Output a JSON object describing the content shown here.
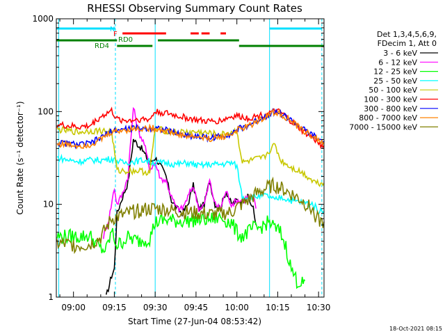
{
  "chart_data": {
    "type": "line",
    "title": "RHESSI Observing Summary Count Rates",
    "xlabel": "Start Time (27-Jun-04 08:53:42)",
    "ylabel": "Count Rate (s⁻¹ detector⁻¹)",
    "y_scale": "log",
    "ylim": [
      1,
      1000
    ],
    "xlim_minutes": [
      53.7,
      152
    ],
    "x_ticks": [
      {
        "label": "09:00",
        "m": 60
      },
      {
        "label": "09:15",
        "m": 75
      },
      {
        "label": "09:30",
        "m": 90
      },
      {
        "label": "09:45",
        "m": 105
      },
      {
        "label": "10:00",
        "m": 120
      },
      {
        "label": "10:15",
        "m": 135
      },
      {
        "label": "10:30",
        "m": 150
      }
    ],
    "y_ticks": [
      {
        "label": "1",
        "v": 1
      },
      {
        "label": "10",
        "v": 10
      },
      {
        "label": "100",
        "v": 100
      },
      {
        "label": "1000",
        "v": 1000
      }
    ],
    "legend_header": [
      "Det 1,3,4,5,6,9,",
      "FDecim 1, Att 0"
    ],
    "legend_position": "right",
    "footer_date": "18-Oct-2021 08:15",
    "markers": {
      "N": {
        "label": "N",
        "color": "#00e0ff"
      },
      "F": {
        "label": "F",
        "color": "#ff0000"
      },
      "RD0": {
        "label": "RD0",
        "color": "#008000"
      },
      "RD4": {
        "label": "RD4",
        "color": "#008000"
      }
    },
    "series": [
      {
        "name": "3 - 6 keV",
        "color": "#000000",
        "points": [
          [
            72,
            1
          ],
          [
            74,
            1.7
          ],
          [
            75,
            2
          ],
          [
            76,
            8
          ],
          [
            78,
            12
          ],
          [
            80,
            17
          ],
          [
            82,
            50
          ],
          [
            85,
            40
          ],
          [
            88,
            28
          ],
          [
            90,
            32
          ],
          [
            92,
            26
          ],
          [
            94,
            20
          ],
          [
            96,
            11
          ],
          [
            98,
            9
          ],
          [
            100,
            8
          ],
          [
            102,
            10
          ],
          [
            104,
            16
          ],
          [
            106,
            9
          ],
          [
            108,
            10
          ],
          [
            110,
            18
          ],
          [
            112,
            10
          ],
          [
            114,
            9
          ],
          [
            116,
            14
          ],
          [
            118,
            10
          ],
          [
            120,
            11
          ],
          [
            122,
            11
          ],
          [
            124,
            12
          ],
          [
            126,
            9
          ],
          [
            127,
            6
          ]
        ]
      },
      {
        "name": "6 - 12 keV",
        "color": "#ff00ff",
        "points": [
          [
            71,
            4.5
          ],
          [
            73,
            7
          ],
          [
            75,
            15
          ],
          [
            76,
            10
          ],
          [
            78,
            13
          ],
          [
            80,
            20
          ],
          [
            82,
            110
          ],
          [
            84,
            60
          ],
          [
            86,
            45
          ],
          [
            88,
            24
          ],
          [
            90,
            28
          ],
          [
            92,
            19
          ],
          [
            94,
            18
          ],
          [
            96,
            12
          ],
          [
            98,
            9
          ],
          [
            100,
            9
          ],
          [
            102,
            12
          ],
          [
            104,
            16
          ],
          [
            106,
            9
          ],
          [
            108,
            10
          ],
          [
            110,
            18
          ],
          [
            112,
            10
          ],
          [
            114,
            9
          ],
          [
            116,
            14
          ],
          [
            118,
            10
          ],
          [
            120,
            11
          ],
          [
            122,
            11
          ],
          [
            124,
            12
          ],
          [
            126,
            12
          ],
          [
            127,
            9
          ]
        ]
      },
      {
        "name": "12 - 25 keV",
        "color": "#00ff00",
        "points": [
          [
            54,
            4.5
          ],
          [
            58,
            4.5
          ],
          [
            62,
            4.5
          ],
          [
            66,
            4.6
          ],
          [
            70,
            3.3
          ],
          [
            72,
            3.2
          ],
          [
            74,
            5.1
          ],
          [
            76,
            3.6
          ],
          [
            80,
            4.4
          ],
          [
            84,
            4
          ],
          [
            88,
            4.3
          ],
          [
            90,
            6.4
          ],
          [
            94,
            6.8
          ],
          [
            98,
            6.6
          ],
          [
            102,
            6.7
          ],
          [
            106,
            6.8
          ],
          [
            110,
            6.9
          ],
          [
            114,
            7.2
          ],
          [
            118,
            6.3
          ],
          [
            120,
            5
          ],
          [
            122,
            4.5
          ],
          [
            124,
            5
          ],
          [
            126,
            5.5
          ],
          [
            128,
            5.5
          ],
          [
            130,
            6
          ],
          [
            132,
            6.5
          ],
          [
            134,
            5.5
          ],
          [
            136,
            5
          ],
          [
            138,
            3.5
          ],
          [
            140,
            2
          ],
          [
            142,
            1.5
          ],
          [
            144,
            1.4
          ],
          [
            145,
            1.5
          ]
        ]
      },
      {
        "name": "25 - 50 keV",
        "color": "#00ffff",
        "points": [
          [
            54,
            32
          ],
          [
            58,
            30
          ],
          [
            62,
            29
          ],
          [
            66,
            30
          ],
          [
            70,
            30
          ],
          [
            74,
            31
          ],
          [
            78,
            28
          ],
          [
            82,
            29
          ],
          [
            86,
            30
          ],
          [
            90,
            28
          ],
          [
            94,
            28
          ],
          [
            98,
            27
          ],
          [
            102,
            28
          ],
          [
            106,
            26
          ],
          [
            110,
            27
          ],
          [
            114,
            27
          ],
          [
            118,
            28
          ],
          [
            120,
            26
          ],
          [
            122,
            12
          ],
          [
            126,
            12
          ],
          [
            130,
            12.5
          ],
          [
            132,
            12
          ],
          [
            134,
            11
          ],
          [
            136,
            12
          ],
          [
            140,
            11
          ],
          [
            144,
            10.5
          ],
          [
            148,
            10
          ],
          [
            150,
            8.5
          ],
          [
            152,
            8.5
          ]
        ]
      },
      {
        "name": "50 - 100 keV",
        "color": "#c8c800",
        "points": [
          [
            54,
            64
          ],
          [
            58,
            62
          ],
          [
            62,
            60
          ],
          [
            66,
            62
          ],
          [
            70,
            62
          ],
          [
            74,
            61
          ],
          [
            76,
            23
          ],
          [
            80,
            23
          ],
          [
            84,
            23
          ],
          [
            88,
            22
          ],
          [
            90,
            65
          ],
          [
            94,
            62
          ],
          [
            98,
            60
          ],
          [
            102,
            60
          ],
          [
            106,
            60
          ],
          [
            110,
            58
          ],
          [
            114,
            56
          ],
          [
            118,
            60
          ],
          [
            120,
            62
          ],
          [
            122,
            28
          ],
          [
            126,
            30
          ],
          [
            130,
            32
          ],
          [
            132,
            38
          ],
          [
            134,
            44
          ],
          [
            136,
            30
          ],
          [
            140,
            25
          ],
          [
            144,
            22
          ],
          [
            148,
            18
          ],
          [
            150,
            17
          ],
          [
            152,
            17
          ]
        ]
      },
      {
        "name": "100 - 300 keV",
        "color": "#ff0000",
        "points": [
          [
            54,
            72
          ],
          [
            58,
            70
          ],
          [
            62,
            68
          ],
          [
            66,
            70
          ],
          [
            70,
            88
          ],
          [
            74,
            102
          ],
          [
            76,
            82
          ],
          [
            80,
            80
          ],
          [
            84,
            83
          ],
          [
            88,
            82
          ],
          [
            90,
            100
          ],
          [
            94,
            96
          ],
          [
            98,
            90
          ],
          [
            102,
            85
          ],
          [
            106,
            80
          ],
          [
            110,
            78
          ],
          [
            114,
            80
          ],
          [
            118,
            88
          ],
          [
            120,
            90
          ],
          [
            124,
            85
          ],
          [
            128,
            90
          ],
          [
            132,
            97
          ],
          [
            134,
            100
          ],
          [
            136,
            98
          ],
          [
            140,
            78
          ],
          [
            144,
            62
          ],
          [
            148,
            52
          ],
          [
            150,
            45
          ],
          [
            152,
            43
          ]
        ]
      },
      {
        "name": "300 - 800 keV",
        "color": "#0000ff",
        "points": [
          [
            54,
            46
          ],
          [
            58,
            45
          ],
          [
            62,
            44
          ],
          [
            66,
            45
          ],
          [
            70,
            52
          ],
          [
            74,
            62
          ],
          [
            78,
            64
          ],
          [
            82,
            66
          ],
          [
            86,
            66
          ],
          [
            90,
            67
          ],
          [
            94,
            63
          ],
          [
            98,
            58
          ],
          [
            102,
            55
          ],
          [
            106,
            54
          ],
          [
            110,
            52
          ],
          [
            114,
            54
          ],
          [
            118,
            58
          ],
          [
            120,
            64
          ],
          [
            124,
            70
          ],
          [
            128,
            82
          ],
          [
            132,
            95
          ],
          [
            134,
            100
          ],
          [
            136,
            96
          ],
          [
            140,
            80
          ],
          [
            144,
            65
          ],
          [
            148,
            55
          ],
          [
            150,
            50
          ],
          [
            152,
            48
          ]
        ]
      },
      {
        "name": "800 - 7000 keV",
        "color": "#ff8000",
        "points": [
          [
            54,
            45
          ],
          [
            58,
            44
          ],
          [
            62,
            43
          ],
          [
            66,
            44
          ],
          [
            70,
            50
          ],
          [
            74,
            60
          ],
          [
            78,
            63
          ],
          [
            82,
            65
          ],
          [
            86,
            66
          ],
          [
            90,
            66
          ],
          [
            94,
            62
          ],
          [
            98,
            57
          ],
          [
            102,
            54
          ],
          [
            106,
            53
          ],
          [
            110,
            51
          ],
          [
            114,
            53
          ],
          [
            118,
            57
          ],
          [
            120,
            63
          ],
          [
            124,
            69
          ],
          [
            128,
            80
          ],
          [
            132,
            94
          ],
          [
            134,
            98
          ],
          [
            136,
            95
          ],
          [
            140,
            78
          ],
          [
            144,
            63
          ],
          [
            148,
            54
          ],
          [
            150,
            49
          ],
          [
            152,
            47
          ]
        ]
      },
      {
        "name": "7000 - 15000 keV",
        "color": "#808000",
        "points": [
          [
            54,
            3.8
          ],
          [
            58,
            3.7
          ],
          [
            62,
            3.6
          ],
          [
            66,
            3.7
          ],
          [
            70,
            4.4
          ],
          [
            74,
            7
          ],
          [
            78,
            7.6
          ],
          [
            82,
            8.3
          ],
          [
            86,
            8.8
          ],
          [
            90,
            9
          ],
          [
            94,
            8.8
          ],
          [
            98,
            8.4
          ],
          [
            102,
            8.2
          ],
          [
            106,
            8
          ],
          [
            110,
            7.8
          ],
          [
            114,
            7.9
          ],
          [
            118,
            8.2
          ],
          [
            120,
            9.2
          ],
          [
            124,
            11
          ],
          [
            128,
            13.5
          ],
          [
            132,
            15.5
          ],
          [
            134,
            16
          ],
          [
            136,
            15
          ],
          [
            140,
            13
          ],
          [
            144,
            11
          ],
          [
            148,
            8.5
          ],
          [
            150,
            6.6
          ],
          [
            152,
            6.5
          ]
        ]
      }
    ]
  }
}
